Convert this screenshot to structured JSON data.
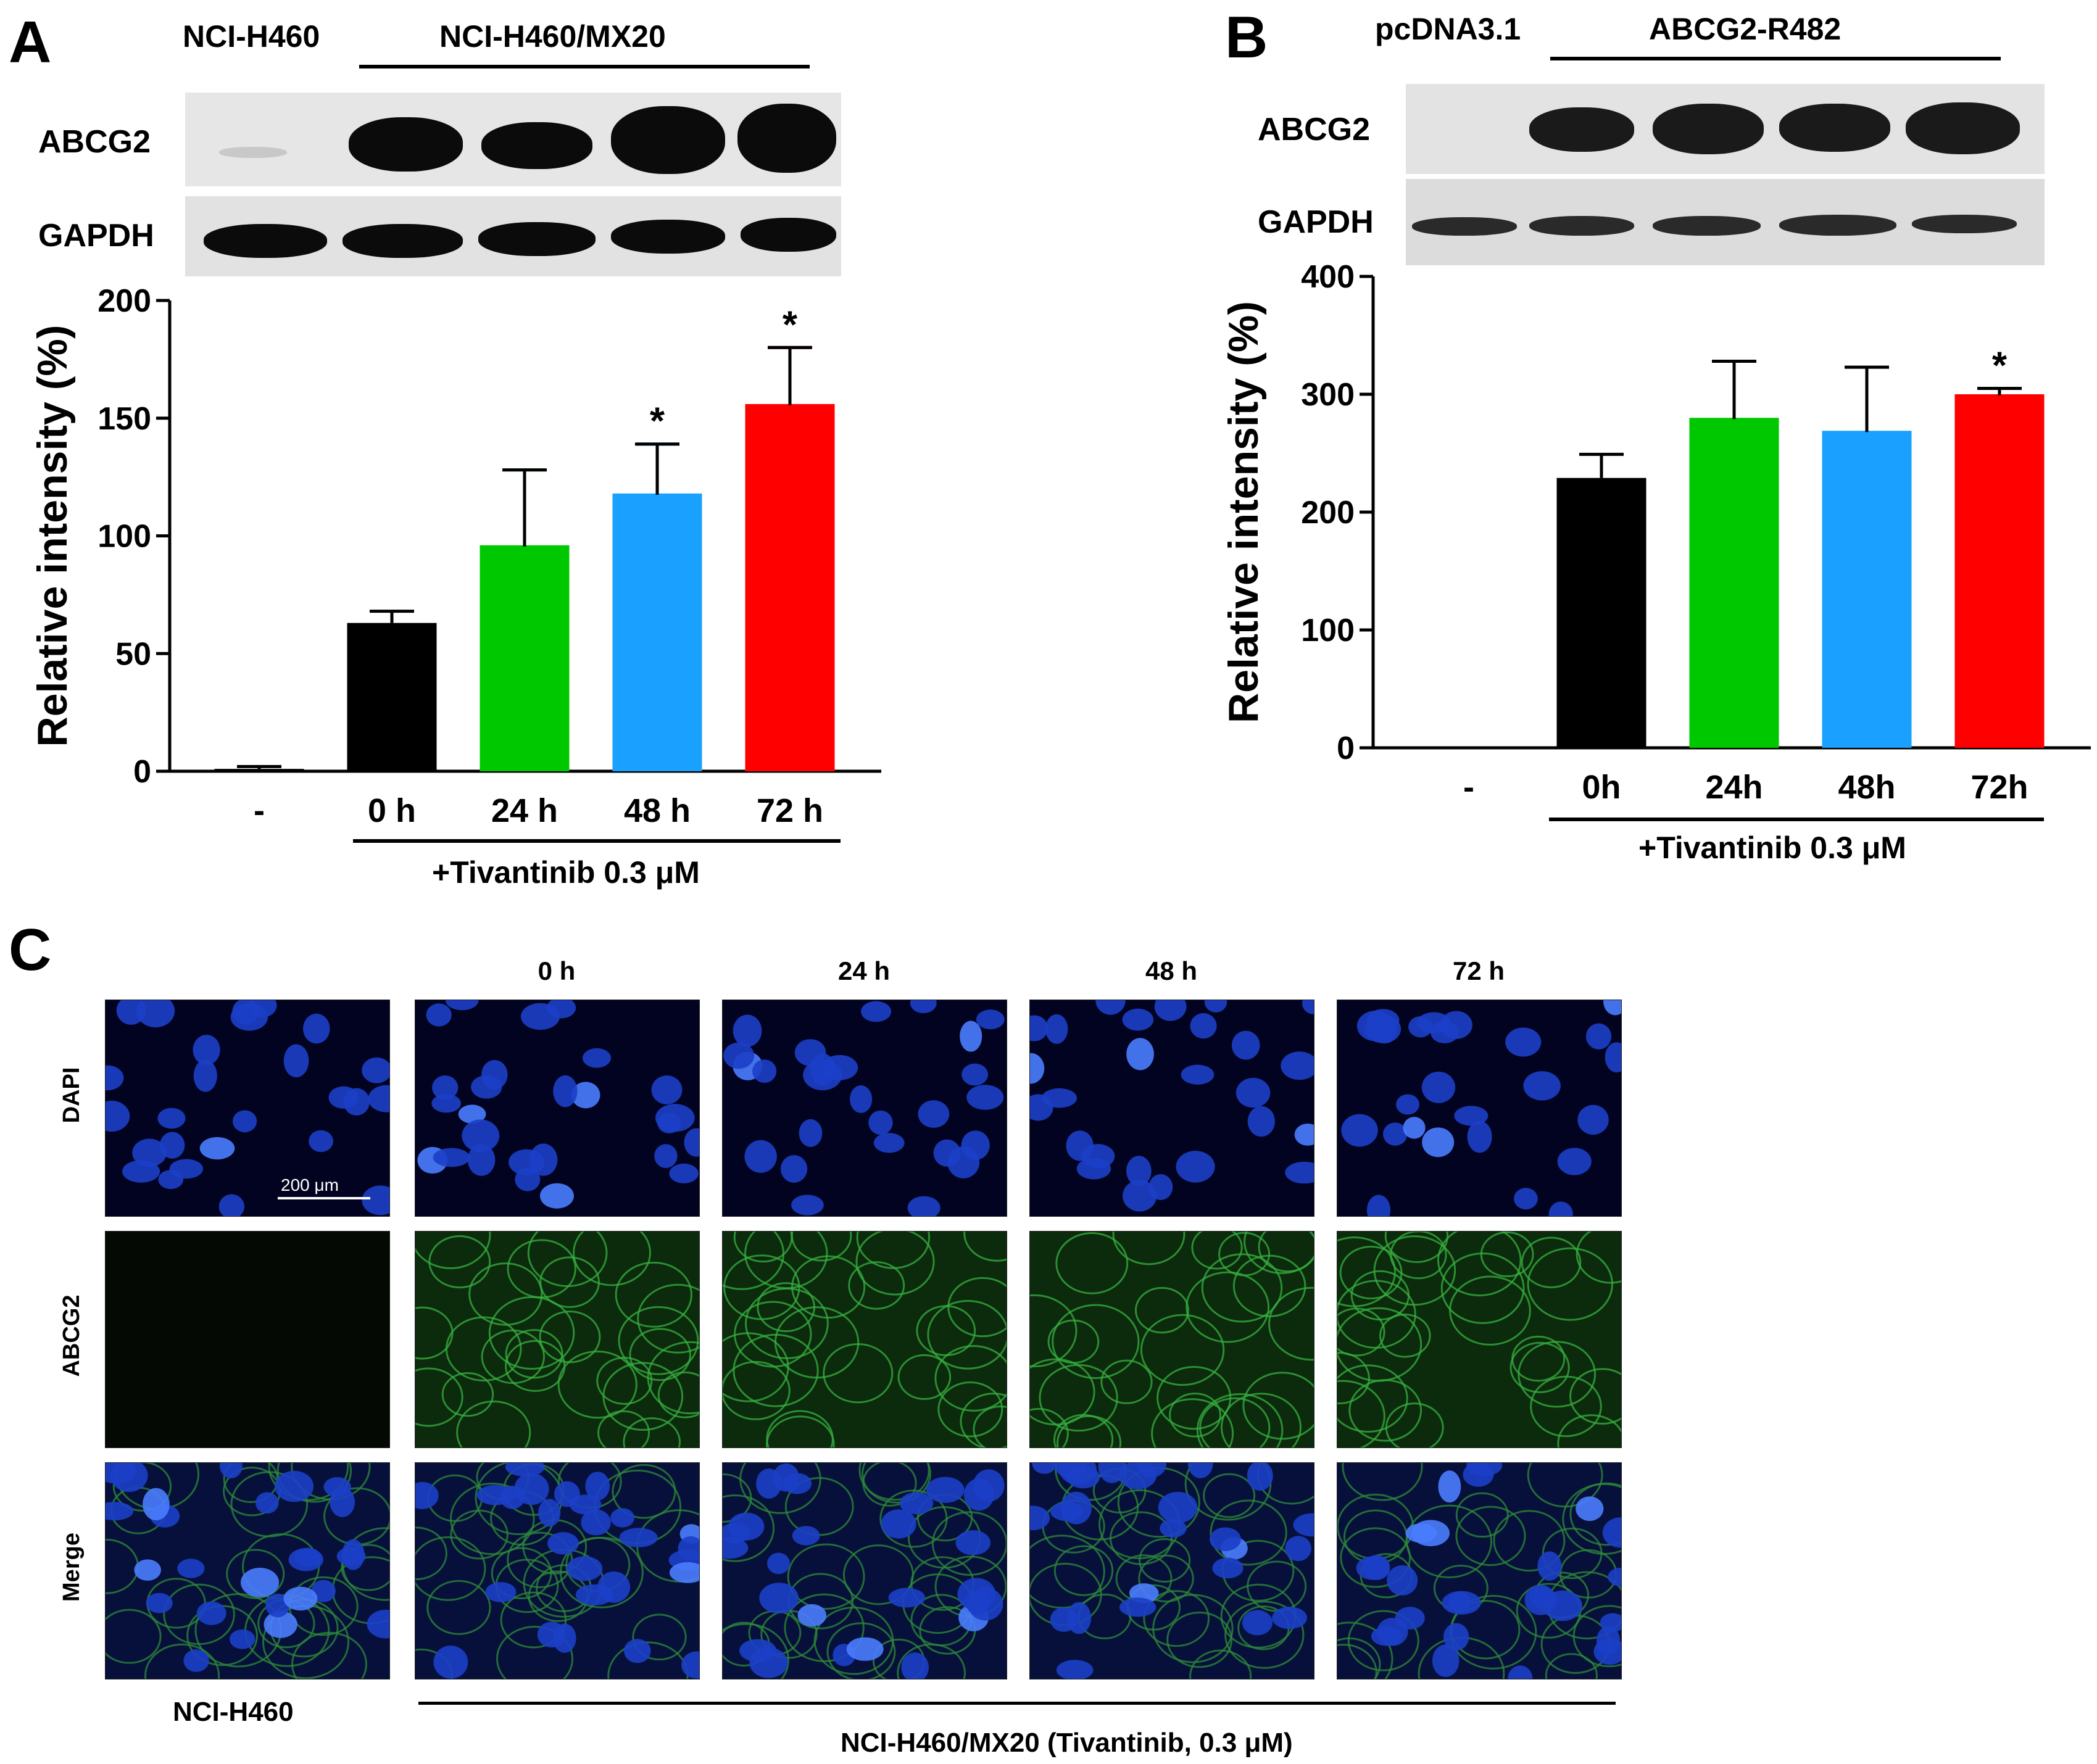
{
  "panels": {
    "a": {
      "label": "A",
      "header_left": "NCI-H460",
      "header_right": "NCI-H460/MX20",
      "blot_rows": [
        "ABCG2",
        "GAPDH"
      ],
      "treatment": "+Tivantinib 0.3 μM"
    },
    "b": {
      "label": "B",
      "header_left": "pcDNA3.1",
      "header_right": "ABCG2-R482",
      "blot_rows": [
        "ABCG2",
        "GAPDH"
      ],
      "treatment": "+Tivantinib 0.3 μM"
    },
    "c": {
      "label": "C",
      "columns": [
        "0 h",
        "24 h",
        "48 h",
        "72 h"
      ],
      "rows": [
        "DAPI",
        "ABCG2",
        "Merge"
      ],
      "scale_bar": "200 μm",
      "bottom_left": "NCI-H460",
      "bottom_right": "NCI-H460/MX20 (Tivantinib, 0.3 μM)"
    }
  },
  "chart_data": [
    {
      "type": "bar",
      "categories": [
        "-",
        "0 h",
        "24 h",
        "48 h",
        "72 h"
      ],
      "values": [
        1,
        63,
        96,
        118,
        156
      ],
      "errors": [
        1,
        5,
        32,
        21,
        24
      ],
      "significance": [
        "",
        "",
        "",
        "*",
        "*"
      ],
      "colors": [
        "#000000",
        "#000000",
        "#00c800",
        "#1aa0ff",
        "#ff0000"
      ],
      "ylabel": "Relative intensity (%)",
      "ylim": [
        0,
        200
      ],
      "yticks": [
        0,
        50,
        100,
        150,
        200
      ]
    },
    {
      "type": "bar",
      "categories": [
        "-",
        "0h",
        "24h",
        "48h",
        "72h"
      ],
      "values": [
        0,
        229,
        280,
        269,
        300
      ],
      "errors": [
        0,
        20,
        48,
        54,
        5
      ],
      "significance": [
        "",
        "",
        "",
        "",
        "*"
      ],
      "colors": [
        "#000000",
        "#000000",
        "#00c800",
        "#1aa0ff",
        "#ff0000"
      ],
      "ylabel": "Relative intensity (%)",
      "ylim": [
        0,
        400
      ],
      "yticks": [
        0,
        100,
        200,
        300,
        400
      ]
    }
  ]
}
